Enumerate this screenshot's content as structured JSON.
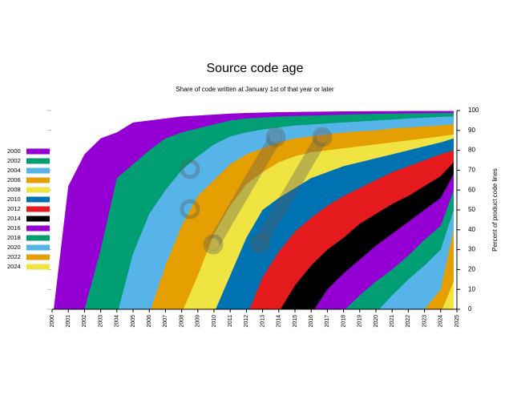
{
  "chart_data": {
    "type": "area",
    "title": "Source code age",
    "subtitle": "Share of code written at January 1st of that year or later",
    "ylabel": "Percent of product code lines",
    "xlim": [
      2000,
      2025
    ],
    "ylim": [
      0,
      100
    ],
    "x_ticks": [
      "2000",
      "2001",
      "2002",
      "2003",
      "2004",
      "2005",
      "2006",
      "2007",
      "2008",
      "2009",
      "2010",
      "2011",
      "2012",
      "2013",
      "2014",
      "2015",
      "2016",
      "2017",
      "2018",
      "2019",
      "2020",
      "2021",
      "2022",
      "2023",
      "2024",
      "2025"
    ],
    "y_ticks": [
      "0",
      "10",
      "20",
      "30",
      "40",
      "50",
      "60",
      "70",
      "80",
      "90",
      "100"
    ],
    "legend_position": "left",
    "grid": false,
    "x": [
      2000,
      2001,
      2002,
      2003,
      2004,
      2005,
      2006,
      2007,
      2008,
      2009,
      2010,
      2011,
      2012,
      2013,
      2014,
      2015,
      2016,
      2017,
      2018,
      2019,
      2020,
      2021,
      2022,
      2023,
      2024,
      2024.8
    ],
    "series": [
      {
        "name": "2000",
        "color": "#9400d3",
        "start": 2000.1,
        "values": [
          0,
          62,
          78,
          86,
          89,
          94,
          95,
          96,
          97,
          97.5,
          98,
          98.5,
          98.8,
          99,
          99.2,
          99.3,
          99.4,
          99.5,
          99.6,
          99.6,
          99.7,
          99.7,
          99.8,
          99.8,
          99.8,
          99.8
        ]
      },
      {
        "name": "2002",
        "color": "#009e73",
        "start": 2001.9,
        "values": [
          0,
          0,
          0,
          30,
          66,
          73,
          80,
          86,
          89,
          91,
          93,
          95,
          96,
          96.5,
          97,
          97.3,
          97.5,
          97.7,
          98,
          98.2,
          98.4,
          98.5,
          98.6,
          98.7,
          98.8,
          98.8
        ]
      },
      {
        "name": "2004",
        "color": "#56b4e9",
        "start": 2004.1,
        "values": [
          0,
          0,
          0,
          0,
          0,
          28,
          48,
          60,
          70,
          77,
          83,
          87,
          89,
          90.5,
          91.5,
          92.5,
          93,
          93.5,
          94,
          94.5,
          95,
          95.5,
          96,
          96.5,
          96.8,
          97
        ]
      },
      {
        "name": "2006",
        "color": "#e69f00",
        "start": 2006.1,
        "values": [
          0,
          0,
          0,
          0,
          0,
          0,
          0,
          22,
          42,
          57,
          65,
          73,
          78,
          81,
          84,
          86,
          87,
          88,
          89,
          89.5,
          90,
          91,
          91.5,
          92,
          92.5,
          93
        ]
      },
      {
        "name": "2008",
        "color": "#f0e442",
        "start": 2008.1,
        "values": [
          0,
          0,
          0,
          0,
          0,
          0,
          0,
          0,
          0,
          17,
          38,
          52,
          63,
          69,
          74,
          77,
          79,
          80,
          81,
          82,
          83,
          84,
          85,
          86,
          87,
          88
        ]
      },
      {
        "name": "2010",
        "color": "#0072b2",
        "start": 2010.1,
        "values": [
          0,
          0,
          0,
          0,
          0,
          0,
          0,
          0,
          0,
          0,
          0,
          17,
          36,
          50,
          56,
          61,
          66,
          69,
          72,
          74,
          76,
          78,
          80,
          82,
          84,
          86
        ]
      },
      {
        "name": "2012",
        "color": "#e41a1c",
        "start": 2012.2,
        "values": [
          0,
          0,
          0,
          0,
          0,
          0,
          0,
          0,
          0,
          0,
          0,
          0,
          0,
          16,
          29,
          39,
          46,
          52,
          57,
          61,
          65,
          69,
          72,
          75,
          78,
          80
        ]
      },
      {
        "name": "2014",
        "color": "#000000",
        "start": 2014.1,
        "values": [
          0,
          0,
          0,
          0,
          0,
          0,
          0,
          0,
          0,
          0,
          0,
          0,
          0,
          0,
          0,
          12,
          22,
          30,
          36,
          43,
          48,
          53,
          57,
          62,
          67,
          74
        ]
      },
      {
        "name": "2016",
        "color": "#9400d3",
        "start": 2016.2,
        "values": [
          0,
          0,
          0,
          0,
          0,
          0,
          0,
          0,
          0,
          0,
          0,
          0,
          0,
          0,
          0,
          0,
          0,
          10,
          18,
          25,
          32,
          38,
          44,
          50,
          56,
          68
        ]
      },
      {
        "name": "2018",
        "color": "#009e73",
        "start": 2018.1,
        "values": [
          0,
          0,
          0,
          0,
          0,
          0,
          0,
          0,
          0,
          0,
          0,
          0,
          0,
          0,
          0,
          0,
          0,
          0,
          0,
          7,
          14,
          20,
          27,
          35,
          42,
          60
        ]
      },
      {
        "name": "2020",
        "color": "#56b4e9",
        "start": 2020.2,
        "values": [
          0,
          0,
          0,
          0,
          0,
          0,
          0,
          0,
          0,
          0,
          0,
          0,
          0,
          0,
          0,
          0,
          0,
          0,
          0,
          0,
          0,
          7,
          15,
          22,
          30,
          50
        ]
      },
      {
        "name": "2022",
        "color": "#e69f00",
        "start": 2022.1,
        "values": [
          0,
          0,
          0,
          0,
          0,
          0,
          0,
          0,
          0,
          0,
          0,
          0,
          0,
          0,
          0,
          0,
          0,
          0,
          0,
          0,
          0,
          0,
          0,
          0,
          10,
          40
        ]
      },
      {
        "name": "2024",
        "color": "#f0e442",
        "start": 2024.1,
        "values": [
          0,
          0,
          0,
          0,
          0,
          0,
          0,
          0,
          0,
          0,
          0,
          0,
          0,
          0,
          0,
          0,
          0,
          0,
          0,
          0,
          0,
          0,
          0,
          0,
          0,
          14
        ]
      }
    ]
  }
}
